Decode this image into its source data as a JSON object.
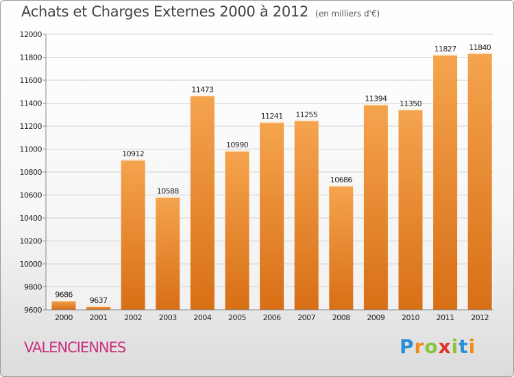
{
  "title": "Achats et Charges Externes 2000 à 2012",
  "subtitle": "(en milliers d'€)",
  "city": "VALENCIENNES",
  "logo": {
    "letters": [
      "P",
      "r",
      "o",
      "x",
      "i",
      "t",
      "i"
    ],
    "colors": [
      "#2a8fd8",
      "#f08a1c",
      "#8cc43c",
      "#e0342c",
      "#8cc43c",
      "#2a8fd8",
      "#f08a1c"
    ]
  },
  "colors": {
    "bar_top": "#f5a44e",
    "bar_bottom": "#d86f16",
    "grid": "#d0d0d0",
    "title": "#444444",
    "city": "#c8327a"
  },
  "chart_data": {
    "type": "bar",
    "title": "Achats et Charges Externes 2000 à 2012",
    "subtitle": "(en milliers d'€)",
    "categories": [
      "2000",
      "2001",
      "2002",
      "2003",
      "2004",
      "2005",
      "2006",
      "2007",
      "2008",
      "2009",
      "2010",
      "2011",
      "2012"
    ],
    "values": [
      9686,
      9637,
      10912,
      10588,
      11473,
      10990,
      11241,
      11255,
      10686,
      11394,
      11350,
      11827,
      11840
    ],
    "data_labels": [
      "9686",
      "9637",
      "10912",
      "10588",
      "11473",
      "10990",
      "11241",
      "11255",
      "10686",
      "11394",
      "11350",
      "11827",
      "11840"
    ],
    "yticks": [
      9600,
      9800,
      10000,
      10200,
      10400,
      10600,
      10800,
      11000,
      11200,
      11400,
      11600,
      11800,
      12000
    ],
    "ylim": [
      9600,
      12000
    ],
    "grid": true,
    "legend": "none"
  }
}
